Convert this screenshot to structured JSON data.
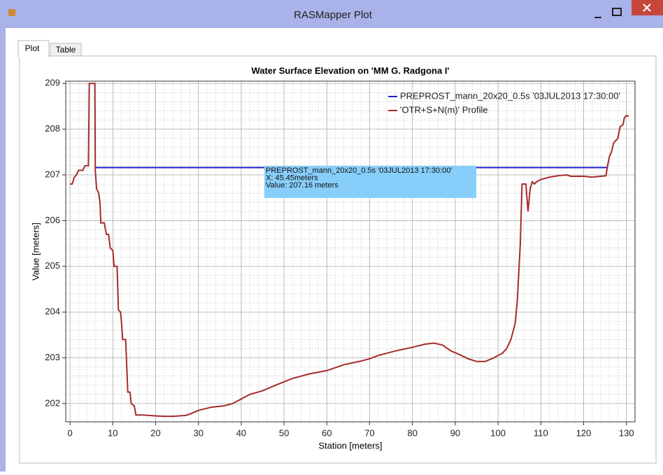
{
  "window": {
    "title": "RASMapper Plot",
    "tabs": [
      "Plot",
      "Table"
    ]
  },
  "chart_data": {
    "type": "line",
    "title": "Water Surface Elevation on 'MM G. Radgona I'",
    "x_label": "Station [meters]",
    "y_label": "Value [meters]",
    "xlim": [
      -1,
      132
    ],
    "ylim": [
      201.6,
      209.05
    ],
    "xticks": [
      0,
      10,
      20,
      30,
      40,
      50,
      60,
      70,
      80,
      90,
      100,
      110,
      120,
      130
    ],
    "yticks": [
      202,
      203,
      204,
      205,
      206,
      207,
      208,
      209
    ],
    "grid": true,
    "legend": "upper right",
    "series": [
      {
        "name": "PREPROST_mann_20x20_0.5s '03JUL2013 17:30:00'",
        "color": "#1f1fd0",
        "x": [
          6,
          125.5
        ],
        "values": [
          207.16,
          207.16
        ]
      },
      {
        "name": "'OTR+S+N(m)' Profile",
        "color": "#a52a2a",
        "x": [
          0,
          0.5,
          1,
          1.5,
          2,
          3,
          3.5,
          4.3,
          4.5,
          5.8,
          5.9,
          6.2,
          6.7,
          7,
          7.2,
          8,
          8.5,
          9,
          9.4,
          10,
          10.3,
          11,
          11.3,
          11.8,
          12,
          12.3,
          13,
          13.5,
          14,
          14.3,
          15,
          15.4,
          17,
          20,
          22,
          24,
          27,
          28,
          30,
          33,
          36,
          38,
          40,
          42,
          45,
          48,
          52,
          56,
          60,
          64,
          68,
          70,
          72,
          76,
          80,
          83,
          85,
          87,
          89,
          91,
          93,
          95,
          97,
          99,
          101,
          102,
          103,
          104,
          104.5,
          105.2,
          105.6,
          106.5,
          107,
          107.5,
          108,
          108.5,
          109,
          110,
          112,
          114,
          116,
          117,
          120,
          122,
          124,
          125.2,
          125.5,
          126,
          126.5,
          127,
          128,
          128.5,
          129.2,
          129.5,
          130,
          130.5
        ],
        "values": [
          206.8,
          206.8,
          206.95,
          207.0,
          207.1,
          207.1,
          207.2,
          207.2,
          209,
          209,
          207.1,
          206.7,
          206.6,
          206.4,
          205.95,
          205.95,
          205.7,
          205.7,
          205.4,
          205.35,
          205.0,
          205.0,
          204.05,
          204.0,
          203.8,
          203.4,
          203.4,
          202.25,
          202.25,
          202.0,
          201.95,
          201.75,
          201.75,
          201.73,
          201.72,
          201.72,
          201.74,
          201.77,
          201.85,
          201.92,
          201.95,
          202.0,
          202.1,
          202.2,
          202.28,
          202.4,
          202.55,
          202.65,
          202.72,
          202.85,
          202.93,
          202.98,
          203.05,
          203.15,
          203.23,
          203.3,
          203.32,
          203.28,
          203.15,
          203.07,
          202.98,
          202.92,
          202.92,
          203.0,
          203.1,
          203.2,
          203.4,
          203.75,
          204.25,
          205.5,
          206.8,
          206.8,
          206.2,
          206.7,
          206.85,
          206.8,
          206.85,
          206.9,
          206.95,
          206.98,
          207.0,
          206.97,
          206.97,
          206.95,
          206.97,
          206.98,
          207.15,
          207.4,
          207.5,
          207.7,
          207.8,
          208.05,
          208.1,
          208.25,
          208.3,
          208.28
        ]
      }
    ],
    "tooltip": [
      "PREPROST_mann_20x20_0.5s  '03JUL2013  17:30:00'",
      "X:  45.45meters",
      "Value: 207.16 meters"
    ]
  }
}
